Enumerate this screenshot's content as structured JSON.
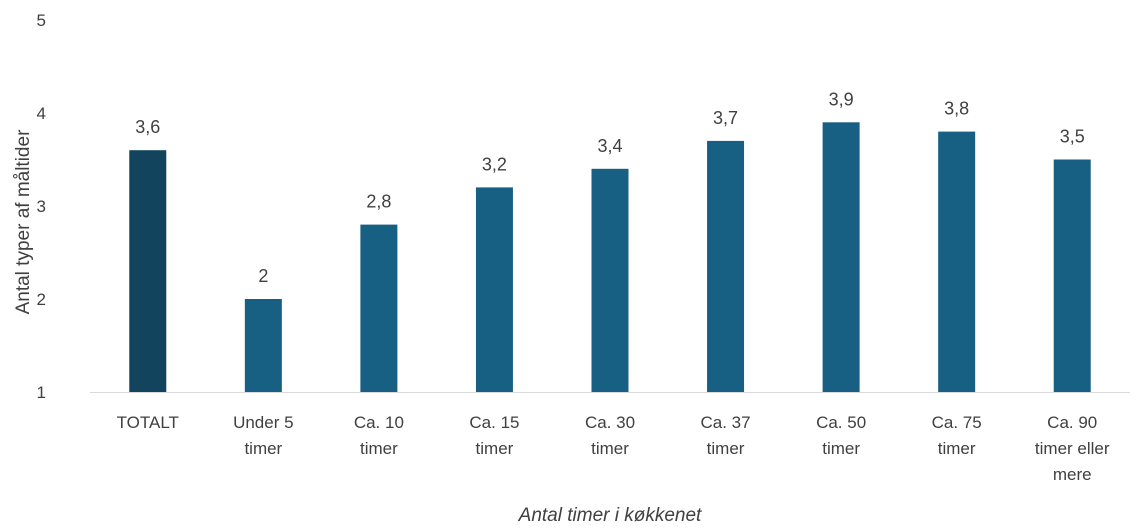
{
  "chart_data": {
    "type": "bar",
    "title": "",
    "xlabel": "Antal timer i køkkenet",
    "ylabel": "Antal typer af måltider",
    "ylim": [
      1,
      5
    ],
    "yticks": [
      "1",
      "2",
      "3",
      "4",
      "5"
    ],
    "grid": false,
    "categories": [
      [
        "TOTALT"
      ],
      [
        "Under 5",
        "timer"
      ],
      [
        "Ca. 10",
        "timer"
      ],
      [
        "Ca. 15",
        "timer"
      ],
      [
        "Ca. 30",
        "timer"
      ],
      [
        "Ca. 37",
        "timer"
      ],
      [
        "Ca. 50",
        "timer"
      ],
      [
        "Ca. 75",
        "timer"
      ],
      [
        "Ca. 90",
        "timer eller",
        "mere"
      ]
    ],
    "values": [
      3.6,
      2,
      2.8,
      3.2,
      3.4,
      3.7,
      3.9,
      3.8,
      3.5
    ],
    "data_labels": [
      "3,6",
      "2",
      "2,8",
      "3,2",
      "3,4",
      "3,7",
      "3,9",
      "3,8",
      "3,5"
    ],
    "colors": {
      "highlight": "#12445e",
      "bar": "#186083",
      "axis": "#d9d9d9"
    }
  }
}
